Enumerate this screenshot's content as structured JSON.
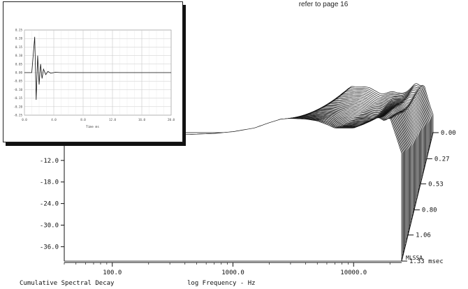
{
  "note": "refer to page 16",
  "chart_data": [
    {
      "type": "waterfall",
      "title": "Cumulative Spectral Decay",
      "xlabel": "log Frequency - Hz",
      "x_scale": "log",
      "xlim": [
        40,
        25000
      ],
      "x_ticks": [
        100,
        1000,
        10000
      ],
      "x_tick_labels": [
        "100.0",
        "1000.0",
        "10000.0"
      ],
      "ylim": [
        -40,
        0
      ],
      "y_ticks": [
        -12,
        -18,
        -24,
        -30,
        -36
      ],
      "y_tick_labels": [
        "-12.0",
        "-18.0",
        "-24.0",
        "-30.0",
        "-36.0"
      ],
      "time_ticks": [
        0.0,
        0.27,
        0.53,
        0.8,
        1.06,
        1.33
      ],
      "time_tick_labels": [
        "0.00",
        "0.27",
        "0.53",
        "0.80",
        "1.06",
        "1.33"
      ],
      "time_unit": "msec",
      "vendor_label": "MLSSA",
      "slices": 40,
      "max_time_ms": 1.33,
      "front_response": {
        "freq_hz": [
          40,
          100,
          300,
          700,
          1000,
          1500,
          2000,
          2500,
          3000,
          4000,
          5000,
          6000,
          7000,
          8000,
          10000,
          12000,
          14000,
          16000,
          18000,
          20000,
          25000
        ],
        "level_db": [
          -5,
          -5,
          -5,
          -4.5,
          -4,
          -3,
          -1.5,
          -0.5,
          -0.3,
          -0.5,
          -1,
          -2,
          -3,
          -3,
          -3,
          -2,
          -1,
          0,
          -1,
          0,
          -10
        ]
      }
    },
    {
      "type": "line",
      "title": "",
      "xlabel": "Time ms",
      "x_tick_labels": [
        "0.0",
        "4.0",
        "8.0",
        "12.0",
        "16.0",
        "20.0"
      ],
      "y_tick_labels": [
        "0.25",
        "0.20",
        "0.15",
        "0.10",
        "0.05",
        "0.00",
        "-0.05",
        "-0.10",
        "-0.15",
        "-0.20",
        "-0.25"
      ],
      "xlim": [
        0,
        20
      ],
      "ylim": [
        -0.25,
        0.25
      ],
      "impulse": {
        "t_ms": [
          0,
          1.0,
          1.4,
          1.6,
          1.8,
          2.0,
          2.2,
          2.4,
          2.6,
          2.9,
          3.2,
          3.6,
          4.2,
          5.0,
          20
        ],
        "amplitude": [
          0,
          0,
          0.21,
          -0.16,
          0.1,
          -0.07,
          0.05,
          -0.035,
          0.02,
          -0.012,
          0.007,
          -0.004,
          0.002,
          0,
          0
        ]
      }
    }
  ]
}
